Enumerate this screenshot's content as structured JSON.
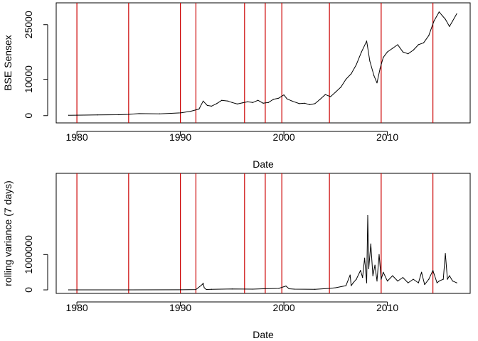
{
  "colors": {
    "axis": "#000000",
    "series": "#000000",
    "breaks": "#cc0000"
  },
  "chart_data": [
    {
      "type": "line",
      "xlabel": "Date",
      "ylabel": "BSE Sensex",
      "xlim": [
        1978,
        2018
      ],
      "ylim": [
        -2000,
        31000
      ],
      "x_ticks": [
        1980,
        1990,
        2000,
        2010
      ],
      "x_tick_labels": [
        "1980",
        "1990",
        "2000",
        "2010"
      ],
      "y_ticks": [
        0,
        10000,
        25000
      ],
      "y_tick_labels": [
        "0",
        "10000",
        "25000"
      ],
      "grid": false,
      "vertical_lines": [
        1980,
        1985,
        1990,
        1991.5,
        1996.2,
        1998.2,
        1999.8,
        2004.4,
        2009.4,
        2014.4
      ],
      "series": [
        {
          "x": [
            1979.2,
            1980,
            1982,
            1984,
            1985,
            1986,
            1988,
            1990,
            1991,
            1991.8,
            1992.2,
            1992.6,
            1993,
            1993.5,
            1994,
            1994.6,
            1995,
            1995.5,
            1996,
            1996.5,
            1997,
            1997.5,
            1998,
            1998.5,
            1999,
            1999.5,
            2000,
            2000.3,
            2000.8,
            2001.5,
            2002,
            2002.5,
            2003,
            2003.5,
            2004,
            2004.5,
            2005,
            2005.5,
            2006,
            2006.5,
            2007,
            2007.5,
            2008,
            2008.3,
            2008.7,
            2009,
            2009.3,
            2009.6,
            2010,
            2010.5,
            2011,
            2011.5,
            2012,
            2012.5,
            2013,
            2013.5,
            2014,
            2014.5,
            2015,
            2015.3,
            2015.6,
            2016,
            2016.3,
            2016.7
          ],
          "y": [
            100,
            120,
            200,
            250,
            350,
            550,
            500,
            750,
            1200,
            1800,
            4000,
            2800,
            2600,
            3300,
            4200,
            4000,
            3600,
            3200,
            3500,
            3800,
            3600,
            4200,
            3400,
            3600,
            4500,
            4800,
            5700,
            4600,
            4000,
            3300,
            3400,
            3000,
            3300,
            4500,
            5800,
            5200,
            6500,
            7800,
            10000,
            11500,
            14000,
            17500,
            20500,
            15000,
            11000,
            9000,
            13000,
            16000,
            17500,
            18500,
            19500,
            17500,
            17000,
            18000,
            19500,
            20000,
            22000,
            26000,
            28500,
            27500,
            26500,
            24500,
            26000,
            28000
          ]
        }
      ]
    },
    {
      "type": "line",
      "xlabel": "Date",
      "ylabel": "rolling variance (7 days)",
      "xlim": [
        1978,
        2018
      ],
      "ylim": [
        -100000,
        3300000
      ],
      "x_ticks": [
        1980,
        1990,
        2000,
        2010
      ],
      "x_tick_labels": [
        "1980",
        "1990",
        "2000",
        "2010"
      ],
      "y_ticks": [
        0,
        1000000
      ],
      "y_tick_labels": [
        "0",
        "1000000"
      ],
      "grid": false,
      "vertical_lines": [
        1980,
        1985,
        1990,
        1991.5,
        1996.2,
        1998.2,
        1999.8,
        2004.4,
        2009.4,
        2014.4
      ],
      "series": [
        {
          "x": [
            1979.2,
            1985,
            1990,
            1991.5,
            1992.1,
            1992.2,
            1992.3,
            1992.5,
            1993,
            1995,
            1997,
            1998,
            1999.5,
            2000.2,
            2000.5,
            2001,
            2003,
            2004.4,
            2005,
            2006,
            2006.4,
            2006.5,
            2006.7,
            2007,
            2007.4,
            2007.6,
            2007.8,
            2008.0,
            2008.1,
            2008.2,
            2008.4,
            2008.6,
            2008.8,
            2009.0,
            2009.2,
            2009.4,
            2009.6,
            2010,
            2010.5,
            2011,
            2011.5,
            2012,
            2012.5,
            2013,
            2013.3,
            2013.6,
            2014,
            2014.4,
            2014.8,
            2015,
            2015.4,
            2015.6,
            2015.8,
            2016,
            2016.3,
            2016.7
          ],
          "y": [
            0,
            1000,
            3000,
            8000,
            150000,
            190000,
            60000,
            10000,
            15000,
            25000,
            20000,
            30000,
            40000,
            110000,
            30000,
            20000,
            15000,
            40000,
            60000,
            120000,
            420000,
            120000,
            200000,
            300000,
            550000,
            350000,
            900000,
            200000,
            2100000,
            600000,
            1300000,
            400000,
            700000,
            250000,
            1000000,
            300000,
            500000,
            250000,
            400000,
            250000,
            350000,
            200000,
            300000,
            200000,
            500000,
            150000,
            300000,
            550000,
            200000,
            250000,
            300000,
            1030000,
            300000,
            400000,
            250000,
            200000
          ]
        }
      ]
    }
  ]
}
